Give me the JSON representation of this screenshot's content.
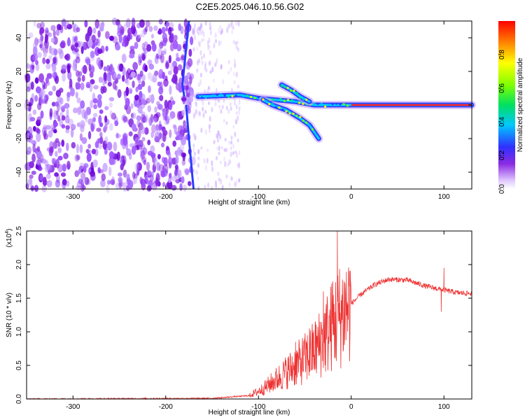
{
  "title": "C2E5.2025.046.10.56.G02",
  "chart_data": [
    {
      "type": "heatmap",
      "xlabel": "Height of straight line (km)",
      "ylabel": "Frequency (Hz)",
      "xlim": [
        -350,
        130
      ],
      "ylim": [
        -50,
        50
      ],
      "xticks": [
        -300,
        -200,
        -100,
        0,
        100
      ],
      "yticks": [
        -40,
        -20,
        0,
        20,
        40
      ],
      "colorbar": {
        "label": "Normalized spectral amplitude",
        "range": [
          0.0,
          1.0
        ],
        "ticks": [
          0.0,
          0.2,
          0.4,
          0.6,
          0.8
        ]
      },
      "features": [
        {
          "kind": "noise_region",
          "x_range": [
            -350,
            -170
          ],
          "y_range": [
            -50,
            50
          ]
        },
        {
          "kind": "sparse_noise",
          "x_range": [
            -170,
            -120
          ],
          "y_range": [
            -50,
            50
          ]
        },
        {
          "kind": "line",
          "points": [
            [
              -175,
              50
            ],
            [
              -182,
              12
            ],
            [
              -180,
              5
            ]
          ]
        },
        {
          "kind": "line",
          "points": [
            [
              -170,
              -50
            ],
            [
              -175,
              -20
            ],
            [
              -178,
              0
            ]
          ]
        },
        {
          "kind": "trace",
          "points": [
            [
              -165,
              5
            ],
            [
              -120,
              6
            ],
            [
              -100,
              4
            ],
            [
              -80,
              3
            ],
            [
              -60,
              2
            ],
            [
              -40,
              0
            ],
            [
              0,
              0
            ],
            [
              130,
              0
            ]
          ]
        },
        {
          "kind": "trace",
          "points": [
            [
              -95,
              3
            ],
            [
              -85,
              0
            ],
            [
              -70,
              -3
            ],
            [
              -55,
              -8
            ],
            [
              -45,
              -12
            ],
            [
              -35,
              -20
            ]
          ]
        },
        {
          "kind": "trace",
          "points": [
            [
              -75,
              12
            ],
            [
              -65,
              9
            ],
            [
              -55,
              5
            ],
            [
              -45,
              2
            ]
          ]
        }
      ]
    },
    {
      "type": "line",
      "xlabel": "Height of straight line (km)",
      "ylabel": "SNR (10 * v/v)",
      "y_scale_label": "(x10",
      "y_scale_exp": "4",
      "xlim": [
        -350,
        130
      ],
      "ylim": [
        0,
        2.5
      ],
      "xticks": [
        -300,
        -200,
        -100,
        0,
        100
      ],
      "yticks": [
        0.0,
        0.5,
        1.0,
        1.5,
        2.0,
        2.5
      ],
      "series_color": "#ee3333",
      "envelope": [
        [
          -350,
          0.0
        ],
        [
          -150,
          0.01
        ],
        [
          -110,
          0.05
        ],
        [
          -95,
          0.15
        ],
        [
          -80,
          0.3
        ],
        [
          -60,
          0.5
        ],
        [
          -45,
          0.65
        ],
        [
          -35,
          0.8
        ],
        [
          -25,
          1.0
        ],
        [
          -15,
          1.2
        ],
        [
          -5,
          1.35
        ],
        [
          10,
          1.55
        ],
        [
          25,
          1.7
        ],
        [
          40,
          1.78
        ],
        [
          60,
          1.77
        ],
        [
          80,
          1.68
        ],
        [
          100,
          1.62
        ],
        [
          115,
          1.58
        ],
        [
          130,
          1.57
        ]
      ],
      "spikes": [
        [
          -60,
          0.85
        ],
        [
          -45,
          1.05
        ],
        [
          -30,
          1.6
        ],
        [
          -20,
          1.75
        ],
        [
          -15,
          2.5
        ],
        [
          -10,
          1.55
        ],
        [
          100,
          1.95
        ],
        [
          97,
          1.3
        ]
      ]
    }
  ]
}
